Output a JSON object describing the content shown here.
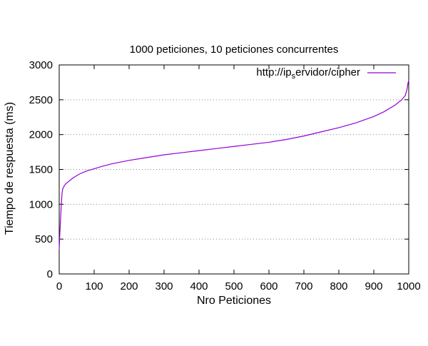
{
  "chart_data": {
    "type": "line",
    "title": "1000 peticiones, 10 peticiones concurrentes",
    "xlabel": "Nro Peticiones",
    "ylabel": "Tiempo de respuesta (ms)",
    "xlim": [
      0,
      1000
    ],
    "ylim": [
      0,
      3000
    ],
    "xticks": [
      "0",
      "100",
      "200",
      "300",
      "400",
      "500",
      "600",
      "700",
      "800",
      "900",
      "1000"
    ],
    "yticks": [
      "0",
      "500",
      "1000",
      "1500",
      "2000",
      "2500",
      "3000"
    ],
    "grid": "horizontal dotted",
    "legend_position": "top-right",
    "series": [
      {
        "name_parts": [
          "http://ip",
          "s",
          "ervidor/cipher"
        ],
        "color": "#9400d3",
        "x": [
          0,
          2,
          4,
          6,
          8,
          10,
          15,
          20,
          30,
          40,
          50,
          60,
          70,
          80,
          100,
          120,
          150,
          200,
          250,
          300,
          350,
          400,
          450,
          500,
          550,
          600,
          650,
          700,
          750,
          800,
          850,
          900,
          930,
          960,
          980,
          990,
          995,
          998,
          1000
        ],
        "y": [
          350,
          600,
          800,
          1000,
          1150,
          1220,
          1270,
          1300,
          1340,
          1380,
          1410,
          1440,
          1460,
          1480,
          1510,
          1540,
          1580,
          1630,
          1670,
          1710,
          1740,
          1770,
          1800,
          1830,
          1860,
          1890,
          1930,
          1980,
          2040,
          2100,
          2170,
          2260,
          2330,
          2420,
          2500,
          2560,
          2650,
          2740,
          2780
        ]
      }
    ]
  }
}
